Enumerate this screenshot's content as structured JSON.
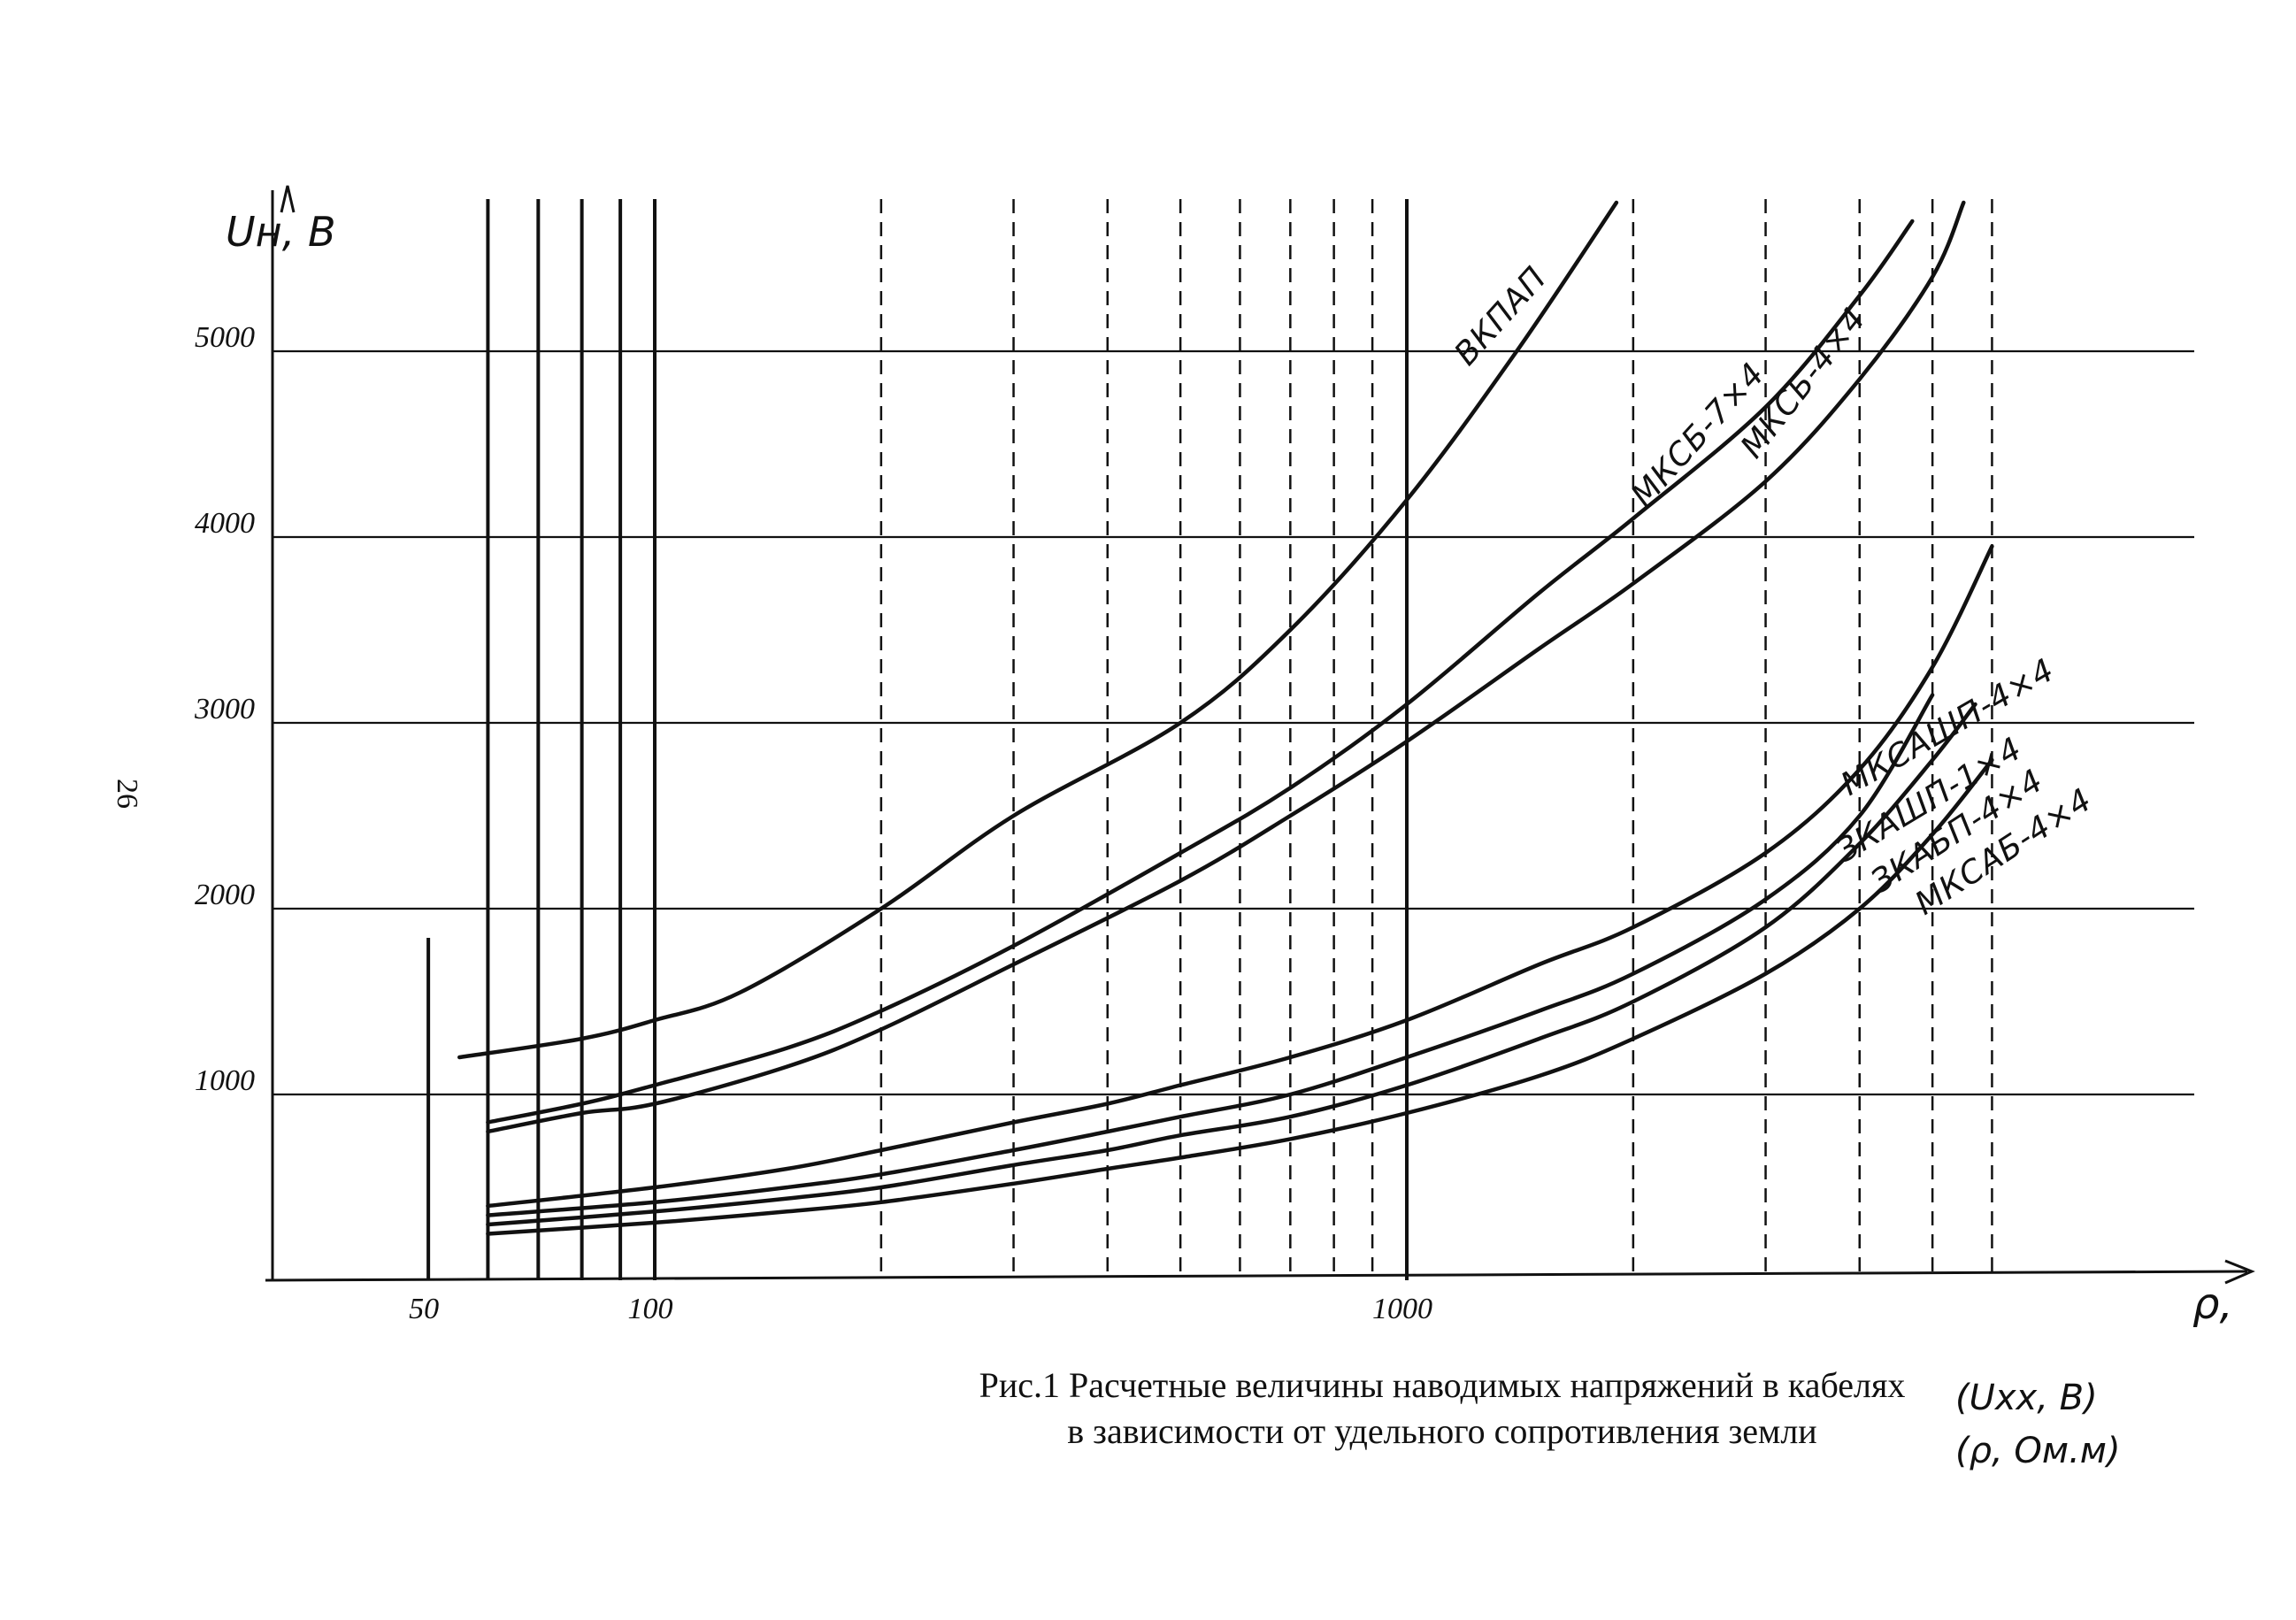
{
  "page_number": "26",
  "caption": {
    "line1": "Рис.1   Расчетные величины наводимых напряжений в кабелях",
    "line2": "в зависимости от удельного сопротивления земли"
  },
  "units_note": {
    "line1": "(Uxx, B)",
    "line2": "(ρ, Ом.м)"
  },
  "chart_data": {
    "type": "line",
    "xscale": "log",
    "xlim": [
      40,
      6000
    ],
    "ylim": [
      0,
      5800
    ],
    "ylabel": "Uн, В",
    "xlabel": "ρ,",
    "x_ticks": [
      50,
      100,
      1000
    ],
    "y_ticks": [
      1000,
      2000,
      3000,
      4000,
      5000
    ],
    "grid": true,
    "series": [
      {
        "name": "ВКПАП",
        "x": [
          55,
          80,
          100,
          130,
          200,
          300,
          500,
          700,
          1000,
          1400,
          1900
        ],
        "y": [
          1200,
          1300,
          1400,
          1550,
          2000,
          2500,
          3000,
          3500,
          4200,
          5000,
          5800
        ]
      },
      {
        "name": "МКСБ-7×4",
        "x": [
          60,
          80,
          100,
          150,
          200,
          300,
          500,
          700,
          1000,
          1500,
          2000,
          3000,
          4000,
          4700
        ],
        "y": [
          850,
          950,
          1050,
          1250,
          1450,
          1800,
          2300,
          2650,
          3100,
          3700,
          4100,
          4700,
          5300,
          5700
        ]
      },
      {
        "name": "МКСБ-4×4",
        "x": [
          60,
          80,
          100,
          150,
          200,
          300,
          500,
          700,
          1000,
          1500,
          2000,
          3000,
          4000,
          5000,
          5500
        ],
        "y": [
          800,
          900,
          950,
          1150,
          1350,
          1700,
          2150,
          2500,
          2900,
          3400,
          3750,
          4300,
          4850,
          5400,
          5800
        ]
      },
      {
        "name": "МКСАШП-4×4",
        "x": [
          60,
          100,
          150,
          200,
          300,
          400,
          500,
          700,
          1000,
          1500,
          2000,
          3000,
          4000,
          5000,
          6000
        ],
        "y": [
          400,
          500,
          600,
          700,
          850,
          950,
          1050,
          1200,
          1400,
          1700,
          1900,
          2300,
          2750,
          3300,
          3950
        ]
      },
      {
        "name": "ЗКАШП-1×4",
        "x": [
          60,
          100,
          150,
          200,
          300,
          400,
          500,
          700,
          1000,
          1500,
          2000,
          3000,
          4000,
          5000
        ],
        "y": [
          350,
          420,
          500,
          570,
          700,
          800,
          880,
          1000,
          1200,
          1450,
          1650,
          2050,
          2500,
          3150
        ]
      },
      {
        "name": "ЗКАБП-4×4",
        "x": [
          60,
          100,
          150,
          200,
          300,
          400,
          500,
          700,
          1000,
          1500,
          2000,
          3000,
          4000,
          5000,
          5700
        ],
        "y": [
          300,
          370,
          440,
          500,
          620,
          700,
          780,
          880,
          1050,
          1300,
          1500,
          1900,
          2350,
          2800,
          3100
        ]
      },
      {
        "name": "МКСАБ-4×4",
        "x": [
          60,
          100,
          150,
          200,
          300,
          400,
          500,
          700,
          1000,
          1500,
          2000,
          3000,
          4000,
          5000,
          6000
        ],
        "y": [
          250,
          310,
          370,
          420,
          520,
          600,
          660,
          760,
          900,
          1100,
          1300,
          1650,
          2000,
          2400,
          2800
        ]
      }
    ]
  }
}
